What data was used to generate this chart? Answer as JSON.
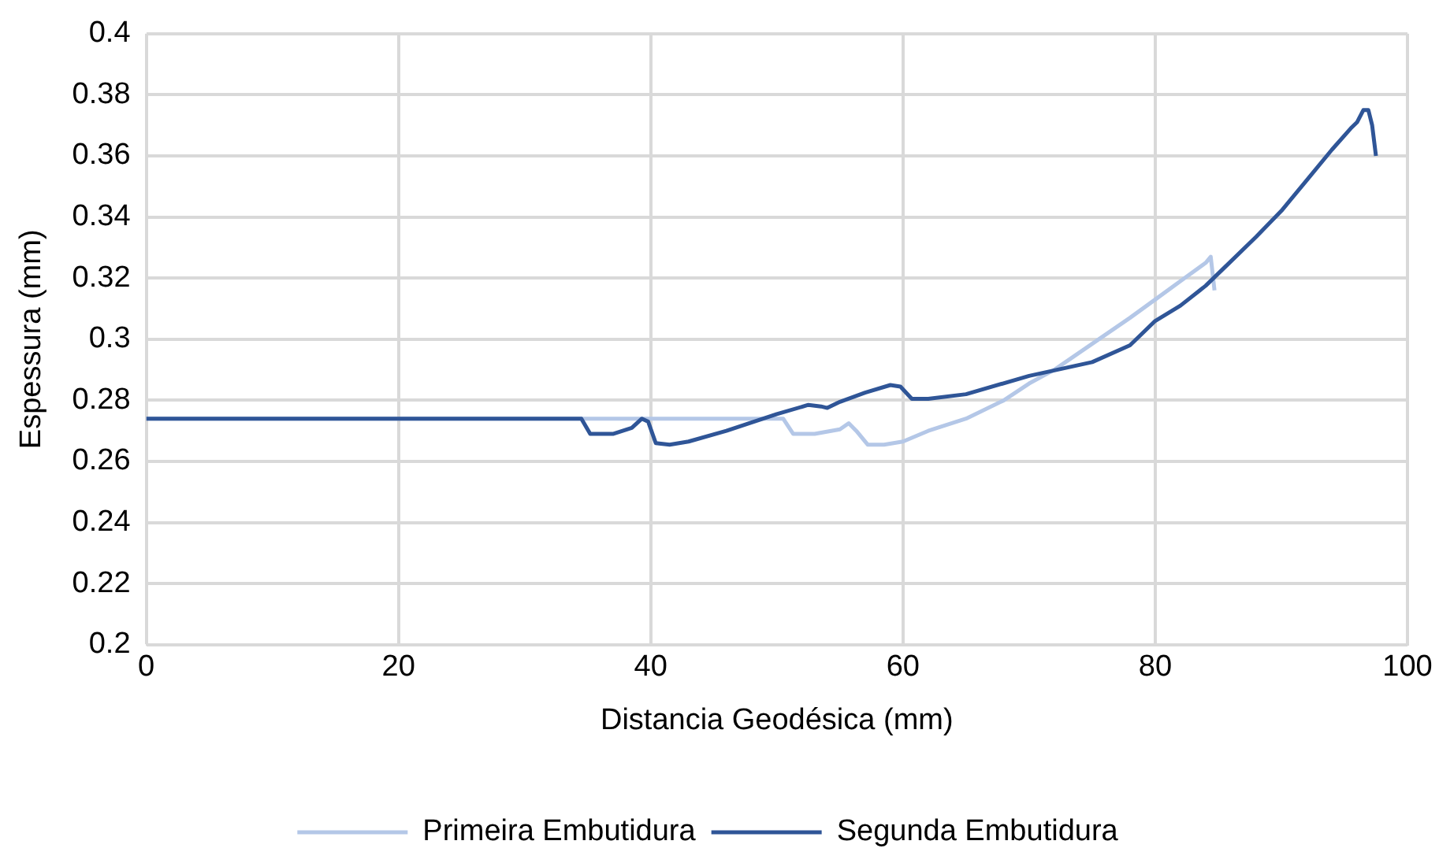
{
  "chart_data": {
    "type": "line",
    "xlabel": "Distancia Geodésica (mm)",
    "ylabel": "Espessura (mm)",
    "xlim": [
      0,
      100
    ],
    "xticks": [
      0,
      20,
      40,
      60,
      80,
      100
    ],
    "ylim": [
      0.2,
      0.4
    ],
    "yticks": [
      0.2,
      0.22,
      0.24,
      0.26,
      0.28,
      0.3,
      0.32,
      0.34,
      0.36,
      0.38,
      0.4
    ],
    "grid": true,
    "legend": "bottom",
    "marker": "none",
    "line_style": "solid",
    "series": [
      {
        "name": "Primeira Embutidura",
        "color": "#b4c7e7",
        "x": [
          0,
          50.5,
          51.3,
          53,
          55,
          55.7,
          56.3,
          57.2,
          58.5,
          60,
          62,
          65,
          68,
          70,
          72,
          75,
          78,
          80,
          82,
          84,
          84.4,
          84.7
        ],
        "values": [
          0.274,
          0.274,
          0.269,
          0.269,
          0.2705,
          0.2725,
          0.27,
          0.2655,
          0.2655,
          0.2665,
          0.27,
          0.274,
          0.28,
          0.2855,
          0.29,
          0.2985,
          0.307,
          0.313,
          0.319,
          0.325,
          0.327,
          0.316
        ]
      },
      {
        "name": "Segunda Embutidura",
        "color": "#2f5597",
        "x": [
          0,
          34.5,
          35.2,
          37,
          38.5,
          39.3,
          39.8,
          40.4,
          41.5,
          43,
          46,
          50,
          52.5,
          53.5,
          54,
          55,
          57,
          59,
          59.8,
          60.7,
          62,
          65,
          70,
          75,
          78,
          80,
          82,
          84,
          86,
          88,
          90,
          92,
          94,
          95.5,
          96,
          96.5,
          96.9,
          97.2,
          97.5
        ],
        "values": [
          0.274,
          0.274,
          0.269,
          0.269,
          0.271,
          0.274,
          0.273,
          0.266,
          0.2655,
          0.2665,
          0.27,
          0.2755,
          0.2785,
          0.278,
          0.2775,
          0.2795,
          0.2825,
          0.285,
          0.2845,
          0.2805,
          0.2805,
          0.282,
          0.288,
          0.2925,
          0.298,
          0.306,
          0.311,
          0.3175,
          0.3255,
          0.3335,
          0.342,
          0.352,
          0.362,
          0.369,
          0.371,
          0.375,
          0.375,
          0.37,
          0.36
        ]
      }
    ]
  }
}
